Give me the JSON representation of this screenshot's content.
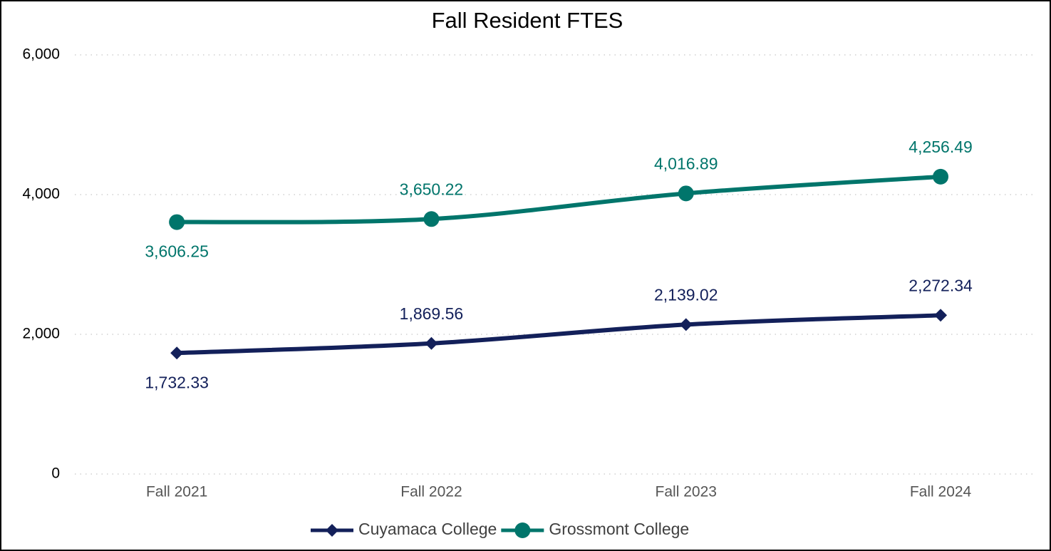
{
  "chart_data": {
    "type": "line",
    "title": "Fall Resident FTES",
    "categories": [
      "Fall 2021",
      "Fall 2022",
      "Fall 2023",
      "Fall 2024"
    ],
    "series": [
      {
        "name": "Cuyamaca College",
        "color": "#13205a",
        "marker": "diamond",
        "values": [
          1732.33,
          1869.56,
          2139.02,
          2272.34
        ],
        "value_labels": [
          "1,732.33",
          "1,869.56",
          "2,139.02",
          "2,272.34"
        ]
      },
      {
        "name": "Grossmont College",
        "color": "#00756b",
        "marker": "circle",
        "values": [
          3606.25,
          3650.22,
          4016.89,
          4256.49
        ],
        "value_labels": [
          "3,606.25",
          "3,650.22",
          "4,016.89",
          "4,256.49"
        ]
      }
    ],
    "ylim": [
      0,
      6000
    ],
    "yticks": [
      0,
      {
        "value": 2000,
        "label": "2,000"
      },
      {
        "value": 4000,
        "label": "4,000"
      },
      {
        "value": 6000,
        "label": "6,000"
      }
    ],
    "grid": true,
    "smooth": true,
    "legend": "bottom"
  }
}
